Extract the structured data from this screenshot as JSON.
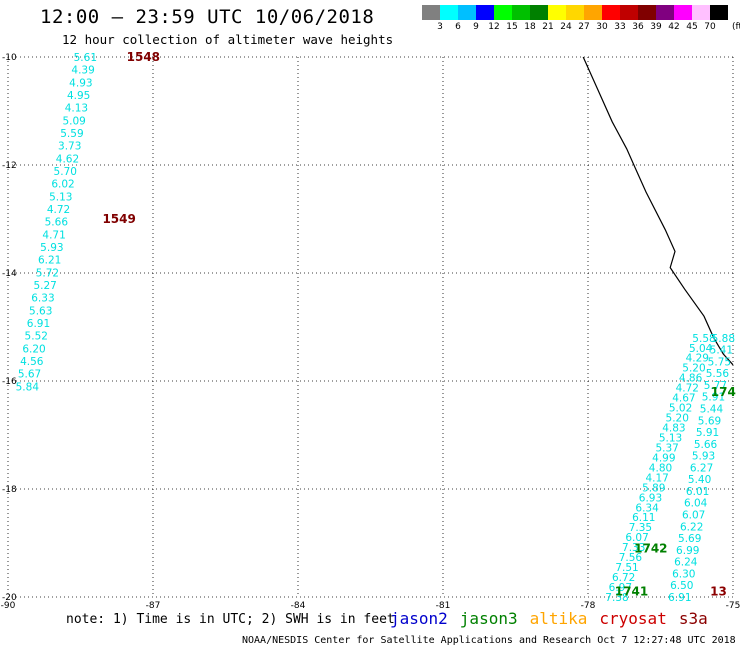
{
  "title": "12:00 – 23:59 UTC 10/06/2018",
  "subtitle": "12 hour collection of altimeter wave heights",
  "legend": {
    "unit": "(ft)",
    "colors": [
      "#808080",
      "#00ffff",
      "#00bfff",
      "#0000ff",
      "#00ff00",
      "#00c000",
      "#008000",
      "#ffff00",
      "#ffd700",
      "#ffa500",
      "#ff0000",
      "#c00000",
      "#800000",
      "#800080",
      "#ff00ff",
      "#ffc0ff",
      "#000000"
    ],
    "labels": [
      "3",
      "6",
      "9",
      "12",
      "15",
      "18",
      "21",
      "24",
      "27",
      "30",
      "33",
      "36",
      "39",
      "42",
      "45",
      "70"
    ]
  },
  "chart_data": {
    "type": "scatter",
    "xlabel": "",
    "ylabel": "",
    "xlim": [
      -90,
      -75
    ],
    "ylim": [
      -20,
      -10
    ],
    "x_ticks": [
      "-90",
      "-87",
      "-84",
      "-81",
      "-78",
      "-75"
    ],
    "y_ticks": [
      "-10",
      "-12",
      "-14",
      "-16",
      "-18",
      "-20"
    ],
    "grid": true,
    "series": [
      {
        "track": "west",
        "start": [
          -88.4,
          -10.0
        ],
        "end": [
          -89.6,
          -16.1
        ],
        "values": [
          "5.61",
          "4.39",
          "4.93",
          "4.95",
          "4.13",
          "5.09",
          "5.59",
          "3.73",
          "4.62",
          "5.70",
          "6.02",
          "5.13",
          "4.72",
          "5.66",
          "4.71",
          "5.93",
          "6.21",
          "5.72",
          "5.27",
          "6.33",
          "5.63",
          "6.91",
          "5.52",
          "6.20",
          "4.56",
          "5.67",
          "5.84"
        ]
      },
      {
        "track": "east-inner",
        "start": [
          -75.6,
          -15.2
        ],
        "end": [
          -77.4,
          -20.0
        ],
        "values": [
          "5.58",
          "5.04",
          "4.29",
          "5.20",
          "4.86",
          "4.72",
          "4.67",
          "5.02",
          "5.20",
          "4.83",
          "5.13",
          "5.37",
          "4.99",
          "4.80",
          "4.17",
          "5.89",
          "6.93",
          "6.34",
          "6.11",
          "7.35",
          "6.07",
          "7.33",
          "7.56",
          "7.51",
          "6.72",
          "6.97",
          "7.38"
        ]
      },
      {
        "track": "east-outer",
        "start": [
          -75.2,
          -15.2
        ],
        "end": [
          -76.1,
          -20.0
        ],
        "values": [
          "5.88",
          "5.41",
          "5.75",
          "5.56",
          "5.77",
          "5.91",
          "5.44",
          "5.69",
          "5.91",
          "5.66",
          "5.93",
          "6.27",
          "5.40",
          "6.01",
          "6.04",
          "6.07",
          "6.22",
          "5.69",
          "6.99",
          "6.24",
          "6.30",
          "6.50",
          "6.91"
        ]
      }
    ],
    "time_labels": [
      {
        "text": "1548",
        "lon": -87.2,
        "lat": -10.0,
        "satellite": "cryosat"
      },
      {
        "text": "1549",
        "lon": -87.7,
        "lat": -13.0,
        "satellite": "cryosat"
      },
      {
        "text": "1742",
        "lon": -76.7,
        "lat": -19.1,
        "satellite": "jason3"
      },
      {
        "text": "1741",
        "lon": -77.1,
        "lat": -19.9,
        "satellite": "jason3"
      },
      {
        "text": "174",
        "lon": -75.2,
        "lat": -16.2,
        "satellite": "jason3"
      },
      {
        "text": "13",
        "lon": -75.3,
        "lat": -19.9,
        "satellite": "s3a"
      }
    ],
    "coastline": [
      [
        -78.1,
        -10.0
      ],
      [
        -77.8,
        -10.6
      ],
      [
        -77.5,
        -11.2
      ],
      [
        -77.2,
        -11.7
      ],
      [
        -77.0,
        -12.1
      ],
      [
        -76.8,
        -12.5
      ],
      [
        -76.4,
        -13.2
      ],
      [
        -76.2,
        -13.6
      ],
      [
        -76.3,
        -13.9
      ],
      [
        -76.0,
        -14.3
      ],
      [
        -75.6,
        -14.8
      ],
      [
        -75.4,
        -15.2
      ],
      [
        -75.2,
        -15.5
      ],
      [
        -75.0,
        -15.7
      ]
    ]
  },
  "note": "note: 1) Time is in UTC; 2) SWH is in feet",
  "satellites": [
    {
      "name": "jason2",
      "color": "#0000cc"
    },
    {
      "name": "jason3",
      "color": "#008000"
    },
    {
      "name": "altika",
      "color": "#ffa500"
    },
    {
      "name": "cryosat",
      "color": "#cc0000"
    },
    {
      "name": "s3a",
      "color": "#8b0000"
    }
  ],
  "credit": "NOAA/NESDIS Center for Satellite Applications and Research   Oct  7 12:27:48 UTC 2018",
  "wave_color": "#00e0e0",
  "time_color": "#800000"
}
